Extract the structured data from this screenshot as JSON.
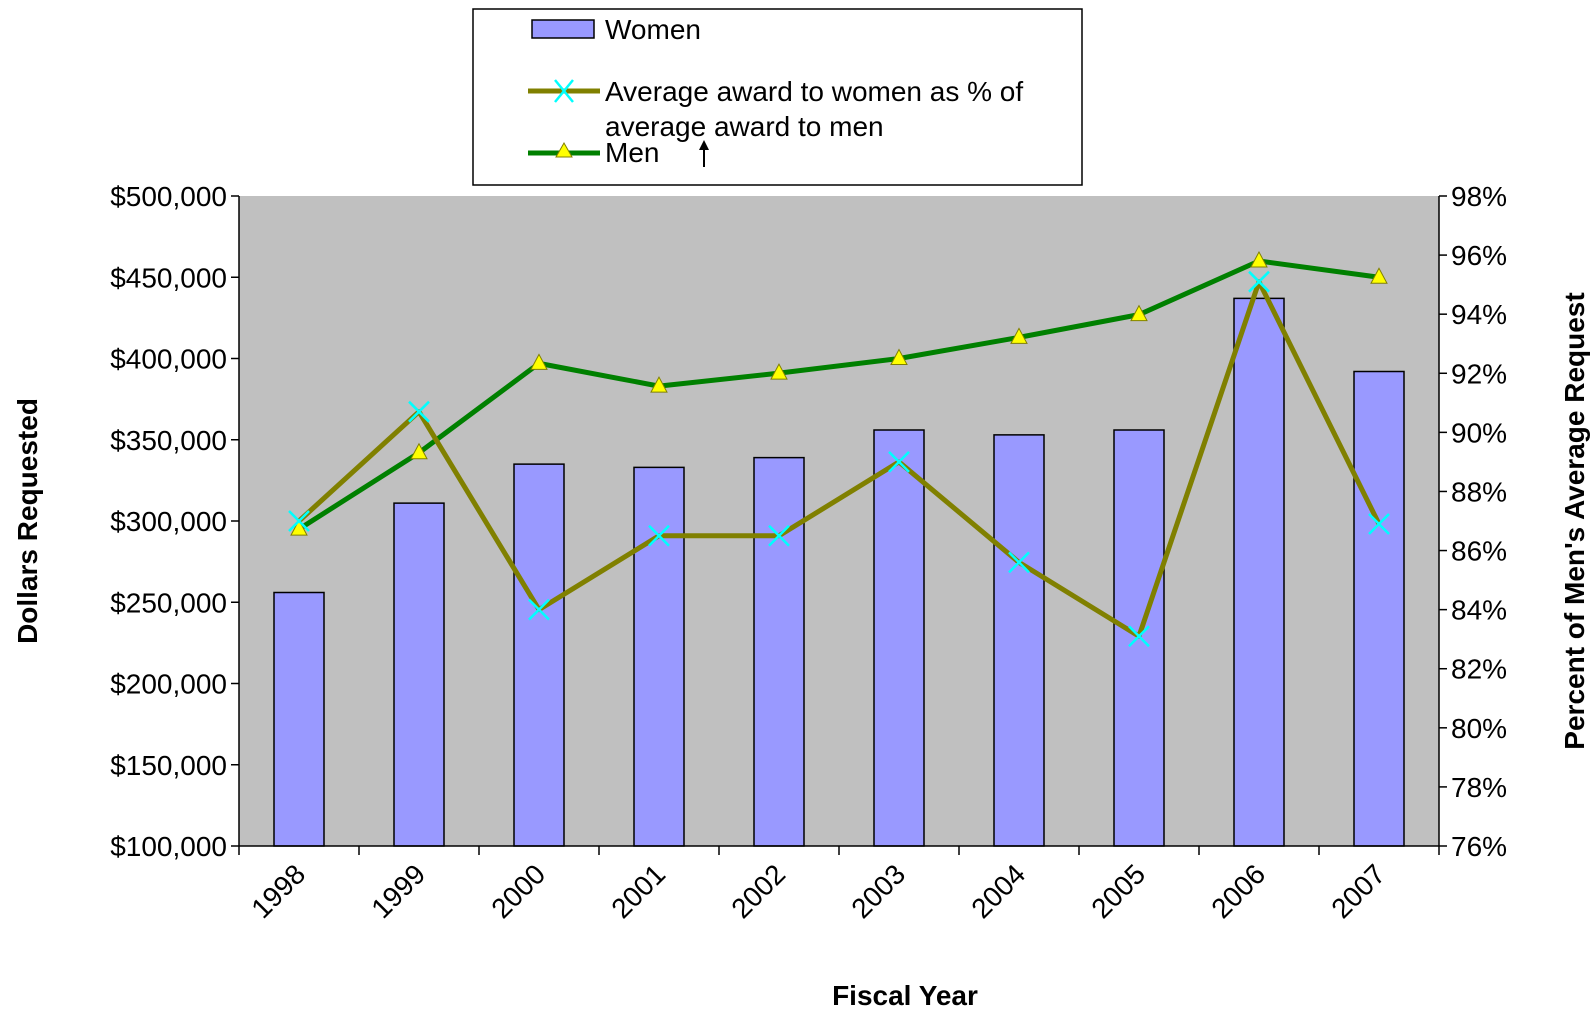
{
  "chart_data": {
    "type": "bar",
    "categories": [
      "1998",
      "1999",
      "2000",
      "2001",
      "2002",
      "2003",
      "2004",
      "2005",
      "2006",
      "2007"
    ],
    "series": [
      {
        "name": "Women",
        "type": "bar",
        "axis": "left",
        "color": "#9999ff",
        "values": [
          256000,
          311000,
          335000,
          333000,
          339000,
          356000,
          353000,
          356000,
          437000,
          392000
        ]
      },
      {
        "name": "Men",
        "type": "line",
        "axis": "left",
        "color": "#008000",
        "marker": "triangle",
        "marker_color": "#ffff00",
        "values": [
          295000,
          342000,
          397000,
          383000,
          391000,
          400000,
          413000,
          427000,
          460000,
          450000
        ]
      },
      {
        "name": "Average award to women as % of average award to men",
        "type": "line",
        "axis": "right",
        "color": "#808000",
        "marker": "x",
        "marker_color": "#00ffff",
        "values": [
          87.0,
          90.7,
          84.0,
          86.5,
          86.5,
          89.0,
          85.6,
          83.1,
          95.1,
          86.9
        ]
      }
    ],
    "legend": {
      "placement": "top",
      "entries": [
        "Women",
        "Average award to women as % of average award to men",
        "Men"
      ]
    },
    "xlabel": "Fiscal Year",
    "ylabel": "Dollars Requested",
    "y2label": "Percent of Men's Average Request",
    "ylim": [
      100000,
      500000
    ],
    "y_ticks": [
      "$100,000",
      "$150,000",
      "$200,000",
      "$250,000",
      "$300,000",
      "$350,000",
      "$400,000",
      "$450,000",
      "$500,000"
    ],
    "y2lim": [
      76,
      98
    ],
    "y2_ticks": [
      "76%",
      "78%",
      "80%",
      "82%",
      "84%",
      "86%",
      "88%",
      "90%",
      "92%",
      "94%",
      "96%",
      "98%"
    ],
    "plot_background": "#c0c0c0",
    "grid": false
  }
}
